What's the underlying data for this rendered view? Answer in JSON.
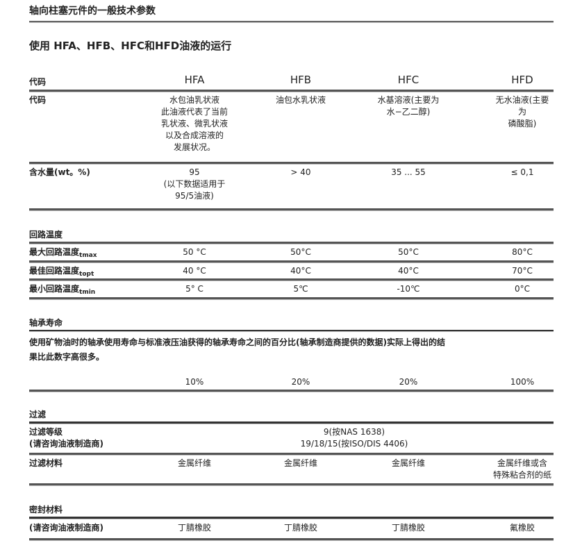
{
  "title": "轴向柱塞元件的一般技术参数",
  "subtitle": "使用 HFA、HFB、HFC和HFD油液的运行",
  "header": {
    "label": "代码",
    "columns": [
      "HFA",
      "HFB",
      "HFC",
      "HFD"
    ]
  },
  "code_row": {
    "label": "代码",
    "values": [
      "水包油乳状液\n此油液代表了当前\n乳状液、微乳状液\n以及合成溶液的\n发展状况。",
      "油包水乳状液",
      "水基溶液(主要为\n水−乙二醇)",
      "无水油液(主要为\n磷酸脂)"
    ]
  },
  "water_row": {
    "label": "含水量(wt。%)",
    "values": [
      "95\n(以下数据适用于\n95/5油液)",
      "> 40",
      "35 ... 55",
      "≤ 0,1"
    ]
  },
  "circuit_temp": {
    "heading": "回路温度",
    "rows": [
      {
        "label": "最大回路温度",
        "sub": "tmax",
        "values": [
          "50 °C",
          "50°C",
          "50°C",
          "80°C"
        ]
      },
      {
        "label": "最佳回路温度",
        "sub": "topt",
        "values": [
          "40 °C",
          "40°C",
          "40°C",
          "70°C"
        ]
      },
      {
        "label": "最小回路温度",
        "sub": "tmin",
        "values": [
          "5° C",
          "5℃",
          "-10℃",
          "0°C"
        ]
      }
    ]
  },
  "bearing_life": {
    "heading": "轴承寿命",
    "text": "使用矿物油时的轴承使用寿命与标准液压油获得的轴承寿命之间的百分比(轴承制造商提供的数据)实际上得出的结\n果比此数字高很多。",
    "values": [
      "10%",
      "20%",
      "20%",
      "100%"
    ]
  },
  "filtration": {
    "heading": "过滤",
    "grade_label": "过滤等级\n(请咨询油液制造商)",
    "grade_value": "9(按NAS 1638)\n19/18/15(按ISO/DIS 4406)",
    "material_label": "过滤材料",
    "material_values": [
      "金属纤维",
      "金属纤维",
      "金属纤维",
      "金属纤维或含\n特殊粘合剂的纸"
    ]
  },
  "seal": {
    "heading": "密封材料",
    "label": "(请咨询油液制造商)",
    "values": [
      "丁腈橡胶",
      "丁腈橡胶",
      "丁腈橡胶",
      "氟橡胶"
    ]
  }
}
